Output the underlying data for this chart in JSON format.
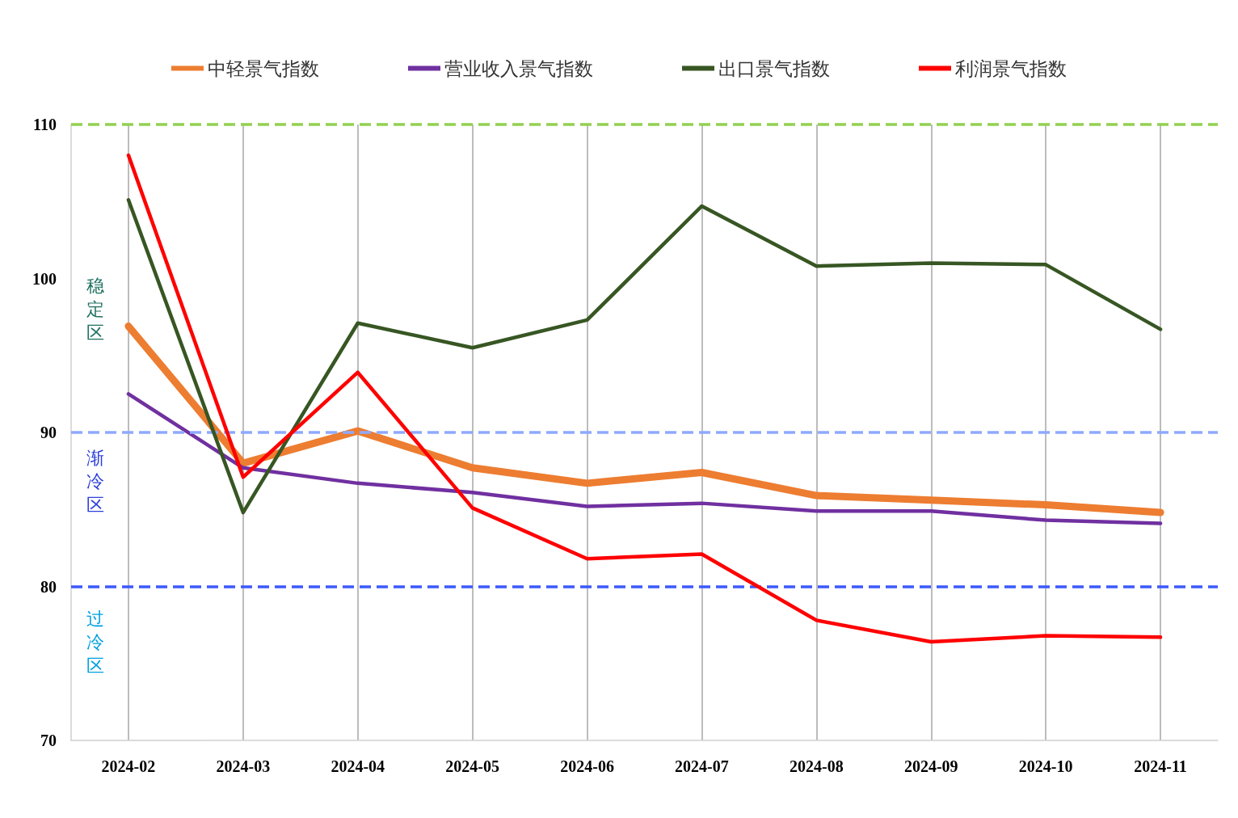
{
  "chart_data": {
    "type": "line",
    "categories": [
      "2024-02",
      "2024-03",
      "2024-04",
      "2024-05",
      "2024-06",
      "2024-07",
      "2024-08",
      "2024-09",
      "2024-10",
      "2024-11"
    ],
    "series": [
      {
        "name": "中轻景气指数",
        "color": "#ed7d31",
        "values": [
          96.9,
          88.0,
          90.1,
          87.7,
          86.7,
          87.4,
          85.9,
          85.6,
          85.3,
          84.8
        ]
      },
      {
        "name": "营业收入景气指数",
        "color": "#7030a0",
        "values": [
          92.5,
          87.7,
          86.7,
          86.1,
          85.2,
          85.4,
          84.9,
          84.9,
          84.3,
          84.1
        ]
      },
      {
        "name": "出口景气指数",
        "color": "#375623",
        "values": [
          105.1,
          84.8,
          97.1,
          95.5,
          97.3,
          104.7,
          100.8,
          101.0,
          100.9,
          96.7
        ]
      },
      {
        "name": "利润景气指数",
        "color": "#ff0000",
        "values": [
          108.0,
          87.1,
          93.9,
          85.1,
          81.8,
          82.1,
          77.8,
          76.4,
          76.8,
          76.7
        ]
      }
    ],
    "ylim": [
      70,
      110
    ],
    "yticks": [
      70,
      80,
      90,
      100,
      110
    ],
    "grid": "x",
    "legend": "top",
    "marker": "none",
    "line_style": "solid",
    "ref_lines": [
      {
        "axis": "y",
        "value": 110,
        "color": "#92d050",
        "line_style": "dashed"
      },
      {
        "axis": "y",
        "value": 90,
        "color": "#8ea9ff",
        "line_style": "dashed"
      },
      {
        "axis": "y",
        "value": 80,
        "color": "#3d5afe",
        "line_style": "dashed"
      }
    ],
    "annotations": [
      "稳定区",
      "渐冷区",
      "过冷区"
    ]
  }
}
